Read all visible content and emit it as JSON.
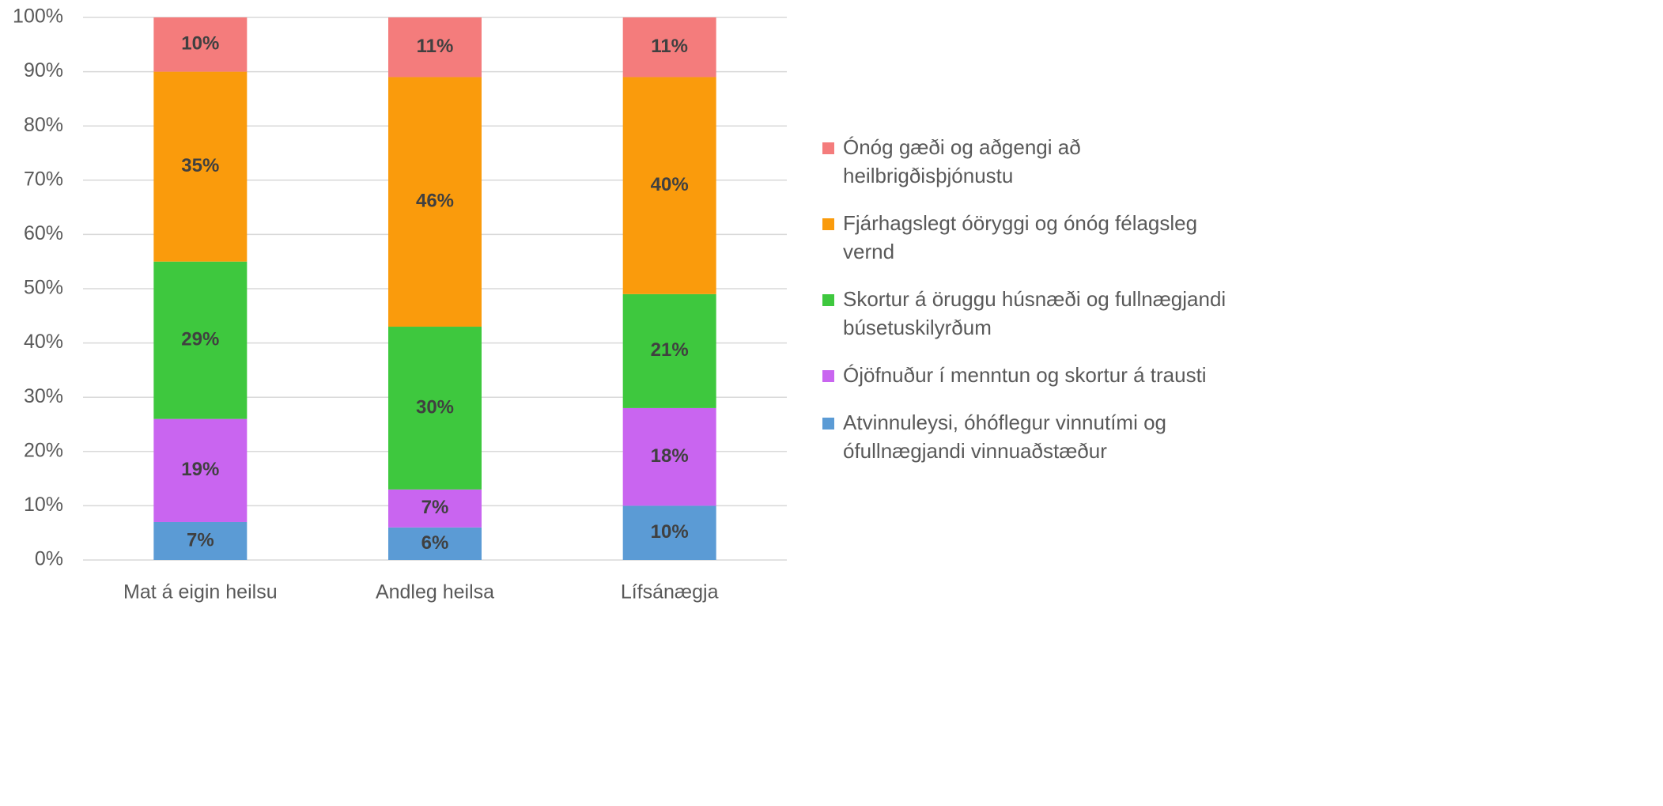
{
  "chart_data": {
    "type": "stacked_bar",
    "categories": [
      "Mat á eigin heilsu",
      "Andleg heilsa",
      "Lífsánægja"
    ],
    "series": [
      {
        "name": "Atvinnuleysi, óhóflegur vinnutími og ófullnægjandi vinnuaðstæður",
        "color": "#5b9bd5",
        "values": [
          7,
          6,
          10
        ],
        "value_labels": [
          "7%",
          "6%",
          "10%"
        ]
      },
      {
        "name": "Ójöfnuður í menntun og skortur á trausti",
        "color": "#c965f0",
        "values": [
          19,
          7,
          18
        ],
        "value_labels": [
          "19%",
          "7%",
          "18%"
        ]
      },
      {
        "name": "Skortur á öruggu húsnæði og fullnægjandi búsetuskilyrðum",
        "color": "#3ec83e",
        "values": [
          29,
          30,
          21
        ],
        "value_labels": [
          "29%",
          "30%",
          "21%"
        ]
      },
      {
        "name": "Fjárhagslegt óöryggi og ónóg félagsleg vernd",
        "color": "#fa9b0c",
        "values": [
          35,
          46,
          40
        ],
        "value_labels": [
          "35%",
          "46%",
          "40%"
        ]
      },
      {
        "name": "Ónóg gæði og aðgengi að heilbrigðisþjónustu",
        "color": "#f47c7c",
        "values": [
          10,
          11,
          11
        ],
        "value_labels": [
          "10%",
          "11%",
          "11%"
        ]
      }
    ],
    "ylim": [
      0,
      100
    ],
    "yticks": [
      {
        "value": 0,
        "label": "0%"
      },
      {
        "value": 10,
        "label": "10%"
      },
      {
        "value": 20,
        "label": "20%"
      },
      {
        "value": 30,
        "label": "30%"
      },
      {
        "value": 40,
        "label": "40%"
      },
      {
        "value": 50,
        "label": "50%"
      },
      {
        "value": 60,
        "label": "60%"
      },
      {
        "value": 70,
        "label": "70%"
      },
      {
        "value": 80,
        "label": "80%"
      },
      {
        "value": 90,
        "label": "90%"
      },
      {
        "value": 100,
        "label": "100%"
      }
    ],
    "grid": true,
    "legend": "right"
  }
}
